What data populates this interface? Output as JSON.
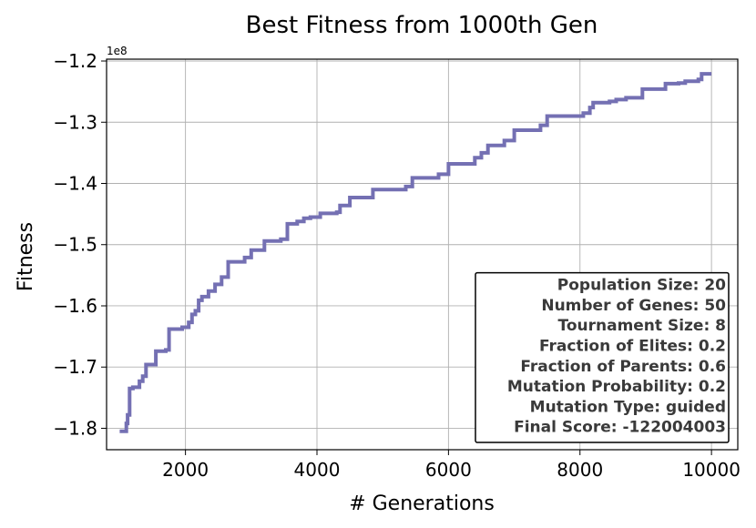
{
  "chart_data": {
    "type": "line",
    "title": "Best Fitness from 1000th Gen",
    "xlabel": "# Generations",
    "ylabel": "Fitness",
    "y_scale_label": "1e8",
    "xlim": [
      800,
      10400
    ],
    "ylim": [
      -1.835,
      -1.197
    ],
    "x_ticks": [
      2000,
      4000,
      6000,
      8000,
      10000
    ],
    "x_tick_labels": [
      "2000",
      "4000",
      "6000",
      "8000",
      "10000"
    ],
    "y_ticks": [
      -1.8,
      -1.7,
      -1.6,
      -1.5,
      -1.4,
      -1.3,
      -1.2
    ],
    "y_tick_labels": [
      "−1.8",
      "−1.7",
      "−1.6",
      "−1.5",
      "−1.4",
      "−1.3",
      "−1.2"
    ],
    "grid": true,
    "series": [
      {
        "color": "#7470b3",
        "x": [
          1000,
          1100,
          1120,
          1150,
          1200,
          1300,
          1350,
          1400,
          1550,
          1700,
          1750,
          1950,
          2050,
          2100,
          2150,
          2200,
          2250,
          2350,
          2450,
          2550,
          2650,
          2900,
          3000,
          3200,
          3450,
          3550,
          3700,
          3800,
          3900,
          4050,
          4300,
          4350,
          4500,
          4850,
          5350,
          5450,
          5850,
          6000,
          6400,
          6500,
          6600,
          6850,
          7000,
          7400,
          7500,
          8050,
          8150,
          8200,
          8450,
          8550,
          8700,
          8950,
          9300,
          9500,
          9600,
          9800,
          9850,
          10000
        ],
        "y": [
          -1.805,
          -1.792,
          -1.778,
          -1.735,
          -1.733,
          -1.723,
          -1.715,
          -1.696,
          -1.674,
          -1.672,
          -1.638,
          -1.635,
          -1.627,
          -1.614,
          -1.608,
          -1.591,
          -1.585,
          -1.576,
          -1.565,
          -1.553,
          -1.528,
          -1.521,
          -1.509,
          -1.494,
          -1.491,
          -1.466,
          -1.462,
          -1.457,
          -1.455,
          -1.449,
          -1.447,
          -1.436,
          -1.423,
          -1.41,
          -1.405,
          -1.391,
          -1.385,
          -1.368,
          -1.358,
          -1.35,
          -1.338,
          -1.33,
          -1.313,
          -1.305,
          -1.29,
          -1.285,
          -1.276,
          -1.268,
          -1.266,
          -1.263,
          -1.26,
          -1.246,
          -1.237,
          -1.236,
          -1.233,
          -1.23,
          -1.221,
          -1.221
        ]
      }
    ],
    "annotation_box": {
      "position": "lower-right",
      "lines": [
        "Population Size: 20",
        "Number of Genes: 50",
        "Tournament Size: 8",
        "Fraction of Elites: 0.2",
        "Fraction of Parents: 0.6",
        "Mutation Probability: 0.2",
        "Mutation Type: guided",
        "Final Score: -122004003"
      ]
    }
  }
}
